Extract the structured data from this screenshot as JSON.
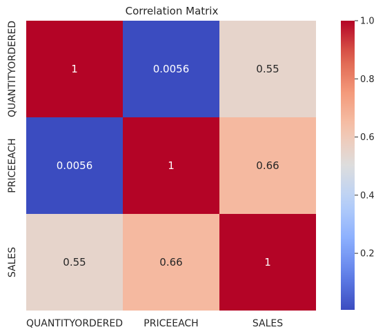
{
  "chart_data": {
    "type": "heatmap",
    "title": "Correlation Matrix",
    "xlabel": "",
    "ylabel": "",
    "x_labels": [
      "QUANTITYORDERED",
      "PRICEEACH",
      "SALES"
    ],
    "y_labels": [
      "QUANTITYORDERED",
      "PRICEEACH",
      "SALES"
    ],
    "values": [
      [
        1,
        0.0056,
        0.55
      ],
      [
        0.0056,
        1,
        0.66
      ],
      [
        0.55,
        0.66,
        1
      ]
    ],
    "annotations": [
      [
        "1",
        "0.0056",
        "0.55"
      ],
      [
        "0.0056",
        "1",
        "0.66"
      ],
      [
        "0.55",
        "0.66",
        "1"
      ]
    ],
    "colormap": "coolwarm",
    "color_range": [
      0.0056,
      1
    ],
    "colorbar_ticks": [
      0.2,
      0.4,
      0.6,
      0.8,
      1.0
    ],
    "colorbar_tick_labels": [
      "0.2",
      "0.4",
      "0.6",
      "0.8",
      "1.0"
    ],
    "colorbar_position": "right",
    "grid": false
  }
}
